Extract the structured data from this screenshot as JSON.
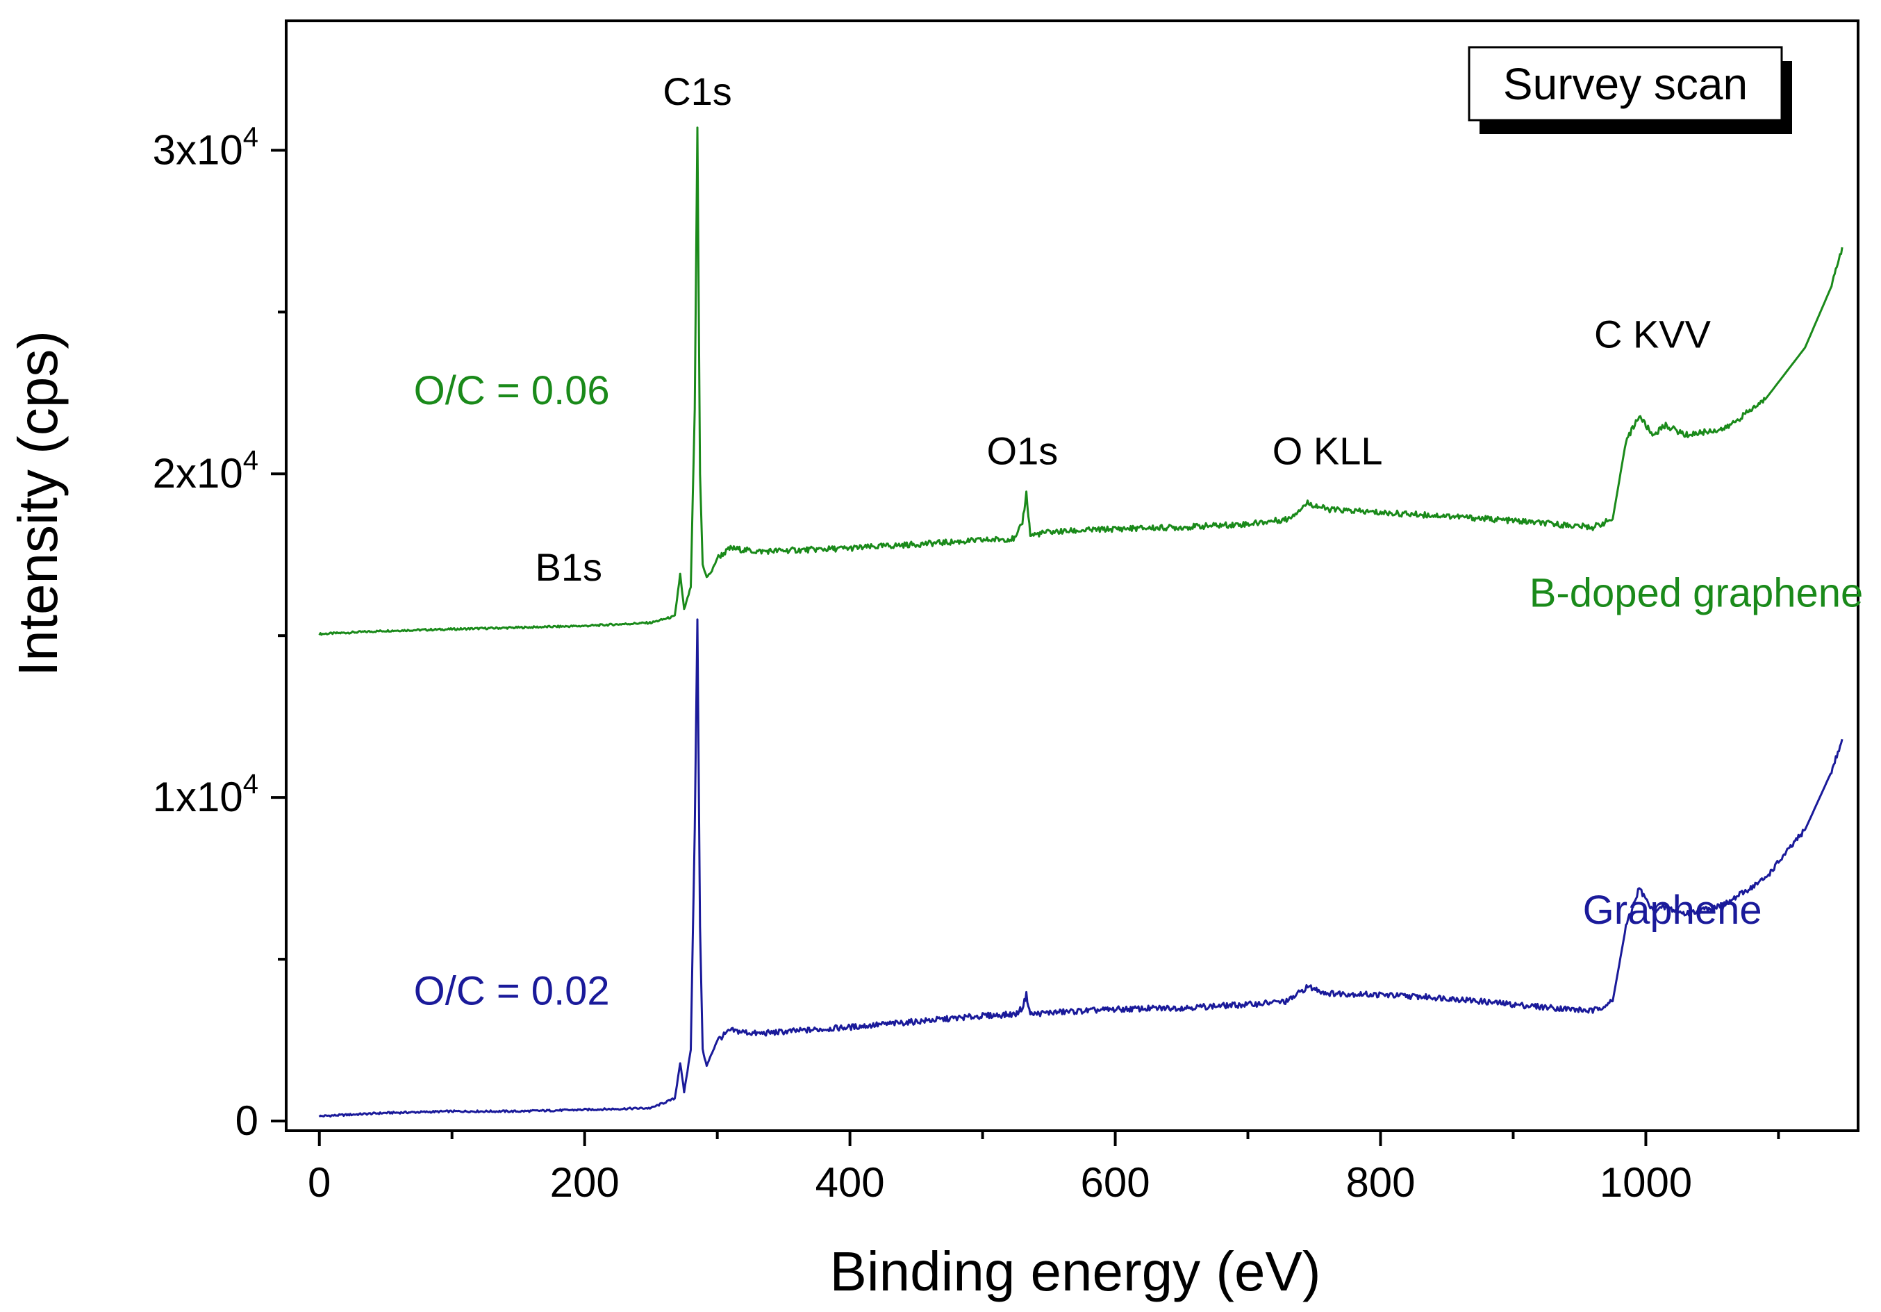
{
  "chart_data": {
    "type": "line",
    "title": "",
    "xlabel": "Binding energy (eV)",
    "ylabel": "Intensity (cps)",
    "xlim": [
      -25,
      1160
    ],
    "ylim": [
      -300,
      34000
    ],
    "x_ticks": [
      {
        "value": 0,
        "label": "0"
      },
      {
        "value": 200,
        "label": "200"
      },
      {
        "value": 400,
        "label": "400"
      },
      {
        "value": 600,
        "label": "600"
      },
      {
        "value": 800,
        "label": "800"
      },
      {
        "value": 1000,
        "label": "1000"
      }
    ],
    "y_ticks": [
      {
        "value": 0,
        "base": "0",
        "exp": ""
      },
      {
        "value": 10000,
        "base": "1x10",
        "exp": "4"
      },
      {
        "value": 20000,
        "base": "2x10",
        "exp": "4"
      },
      {
        "value": 30000,
        "base": "3x10",
        "exp": "4"
      }
    ],
    "legend": {
      "title": "Survey scan",
      "position": "top-right"
    },
    "series": [
      {
        "name": "B-doped graphene",
        "color": "#1a8a1a",
        "ratio_label": "O/C = 0.06",
        "points": [
          [
            0,
            15050
          ],
          [
            50,
            15150
          ],
          [
            100,
            15200
          ],
          [
            150,
            15250
          ],
          [
            200,
            15300
          ],
          [
            250,
            15400
          ],
          [
            268,
            15600
          ],
          [
            272,
            16900
          ],
          [
            275,
            15800
          ],
          [
            280,
            16500
          ],
          [
            283,
            22000
          ],
          [
            285,
            30700
          ],
          [
            287,
            20000
          ],
          [
            289,
            17200
          ],
          [
            292,
            16800
          ],
          [
            296,
            17000
          ],
          [
            300,
            17400
          ],
          [
            310,
            17700
          ],
          [
            330,
            17600
          ],
          [
            400,
            17700
          ],
          [
            500,
            17950
          ],
          [
            525,
            18000
          ],
          [
            530,
            18500
          ],
          [
            533,
            19400
          ],
          [
            536,
            18100
          ],
          [
            550,
            18200
          ],
          [
            600,
            18300
          ],
          [
            650,
            18350
          ],
          [
            700,
            18450
          ],
          [
            730,
            18600
          ],
          [
            745,
            19100
          ],
          [
            760,
            18900
          ],
          [
            800,
            18800
          ],
          [
            850,
            18700
          ],
          [
            900,
            18550
          ],
          [
            960,
            18350
          ],
          [
            975,
            18600
          ],
          [
            985,
            21000
          ],
          [
            995,
            21800
          ],
          [
            1005,
            21200
          ],
          [
            1015,
            21500
          ],
          [
            1030,
            21200
          ],
          [
            1060,
            21400
          ],
          [
            1090,
            22300
          ],
          [
            1120,
            23900
          ],
          [
            1140,
            25800
          ],
          [
            1148,
            27000
          ]
        ]
      },
      {
        "name": "Graphene",
        "color": "#1a1a9a",
        "ratio_label": "O/C = 0.02",
        "points": [
          [
            0,
            150
          ],
          [
            50,
            250
          ],
          [
            100,
            300
          ],
          [
            150,
            300
          ],
          [
            200,
            350
          ],
          [
            250,
            400
          ],
          [
            268,
            700
          ],
          [
            272,
            1800
          ],
          [
            275,
            900
          ],
          [
            280,
            2200
          ],
          [
            283,
            9000
          ],
          [
            285,
            15500
          ],
          [
            287,
            6000
          ],
          [
            289,
            2200
          ],
          [
            292,
            1700
          ],
          [
            296,
            2100
          ],
          [
            300,
            2500
          ],
          [
            310,
            2800
          ],
          [
            330,
            2700
          ],
          [
            400,
            2900
          ],
          [
            500,
            3250
          ],
          [
            525,
            3300
          ],
          [
            530,
            3500
          ],
          [
            533,
            3900
          ],
          [
            536,
            3300
          ],
          [
            550,
            3350
          ],
          [
            600,
            3450
          ],
          [
            650,
            3500
          ],
          [
            700,
            3600
          ],
          [
            730,
            3700
          ],
          [
            745,
            4150
          ],
          [
            760,
            3950
          ],
          [
            800,
            3900
          ],
          [
            850,
            3800
          ],
          [
            900,
            3600
          ],
          [
            960,
            3400
          ],
          [
            975,
            3700
          ],
          [
            985,
            6000
          ],
          [
            995,
            7200
          ],
          [
            1005,
            6500
          ],
          [
            1015,
            6600
          ],
          [
            1030,
            6400
          ],
          [
            1060,
            6700
          ],
          [
            1090,
            7500
          ],
          [
            1120,
            9000
          ],
          [
            1140,
            10800
          ],
          [
            1148,
            11800
          ]
        ]
      }
    ],
    "annotations": [
      {
        "text": "C1s",
        "x": 285,
        "y": 31400
      },
      {
        "text": "O1s",
        "x": 530,
        "y": 20300
      },
      {
        "text": "O KLL",
        "x": 760,
        "y": 20300
      },
      {
        "text": "C KVV",
        "x": 1005,
        "y": 23900
      },
      {
        "text": "B1s",
        "x": 188,
        "y": 16700
      }
    ],
    "series_labels": [
      {
        "series": 0,
        "text": "B-doped graphene",
        "x": 1038,
        "y": 15900
      },
      {
        "series": 1,
        "text": "Graphene",
        "x": 1020,
        "y": 6100
      },
      {
        "series": 0,
        "text": "O/C = 0.06",
        "x": 145,
        "y": 22150
      },
      {
        "series": 1,
        "text": "O/C = 0.02",
        "x": 145,
        "y": 3600
      }
    ]
  }
}
